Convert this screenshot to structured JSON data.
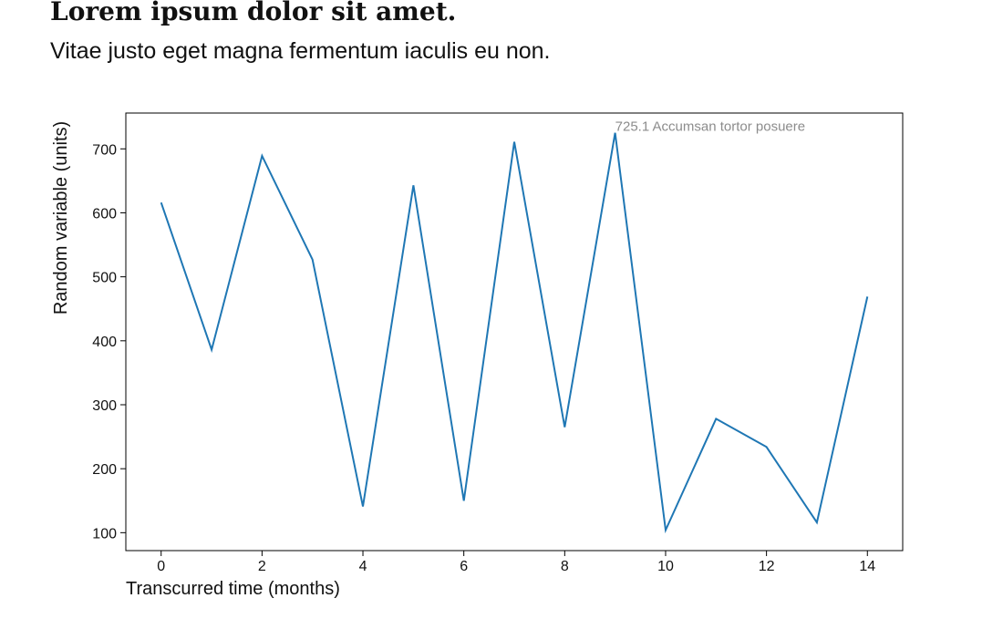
{
  "chart_data": {
    "type": "line",
    "title": "Lorem ipsum dolor sit amet.",
    "subtitle": "Vitae justo eget magna fermentum iaculis eu non.",
    "xlabel": "Transcurred time (months)",
    "ylabel": "Random variable (units)",
    "x": [
      0,
      1,
      2,
      3,
      4,
      5,
      6,
      7,
      8,
      9,
      10,
      11,
      12,
      13,
      14
    ],
    "series": [
      {
        "values": [
          616,
          386,
          689,
          527,
          141,
          643,
          150,
          711,
          265,
          725.1,
          104,
          278,
          234,
          116,
          469
        ],
        "color": "#1f77b4"
      }
    ],
    "xlim": [
      -0.7,
      14.7
    ],
    "ylim": [
      72,
      756
    ],
    "xticks": [
      0,
      2,
      4,
      6,
      8,
      10,
      12,
      14
    ],
    "yticks": [
      100,
      200,
      300,
      400,
      500,
      600,
      700
    ],
    "grid": false,
    "annotation": {
      "text": "725.1 Accumsan tortor posuere",
      "x": 9,
      "y": 725.1
    }
  }
}
